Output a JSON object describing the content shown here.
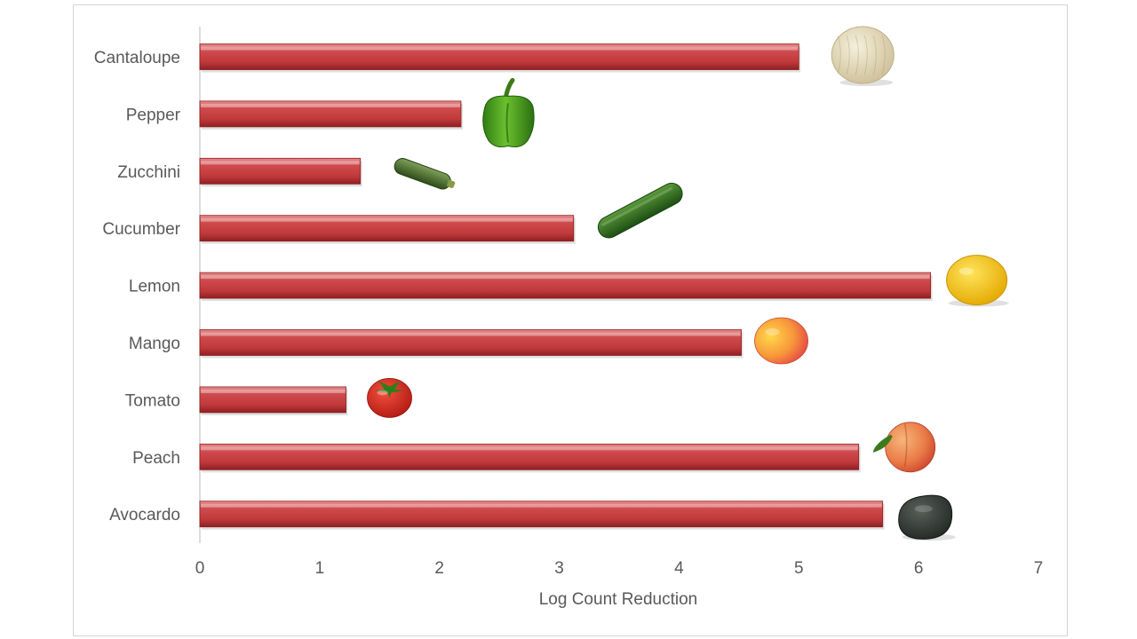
{
  "chart_data": {
    "type": "bar",
    "orientation": "horizontal",
    "title": "",
    "xlabel": "Log Count Reduction",
    "ylabel": "",
    "xlim": [
      0,
      7
    ],
    "xticks": [
      0,
      1,
      2,
      3,
      4,
      5,
      6,
      7
    ],
    "grid": false,
    "legend": "none",
    "categories": [
      "Cantaloupe",
      "Pepper",
      "Zucchini",
      "Cucumber",
      "Lemon",
      "Mango",
      "Tomato",
      "Peach",
      "Avocardo"
    ],
    "values": [
      5.0,
      2.18,
      1.34,
      3.12,
      6.1,
      4.52,
      1.22,
      5.5,
      5.7
    ],
    "icons": [
      "cantaloupe-icon",
      "green-pepper-icon",
      "zucchini-icon",
      "cucumber-icon",
      "lemon-icon",
      "mango-icon",
      "tomato-icon",
      "peach-icon",
      "avocado-icon"
    ],
    "colors": {
      "bar": "#c0393b",
      "bar_light": "#e88a8a",
      "bar_dark": "#8e1f22",
      "text": "#595959",
      "axis": "#d0d0d0",
      "cantaloupe": "#e6dcc0",
      "pepper": "#3f8f1e",
      "zucchini": "#3f6a24",
      "cucumber": "#2f6d1f",
      "lemon": "#f2c200",
      "mango": "#f06a3a",
      "tomato": "#d62a1e",
      "peach": "#e87a4a",
      "avocado": "#2e3530"
    }
  }
}
